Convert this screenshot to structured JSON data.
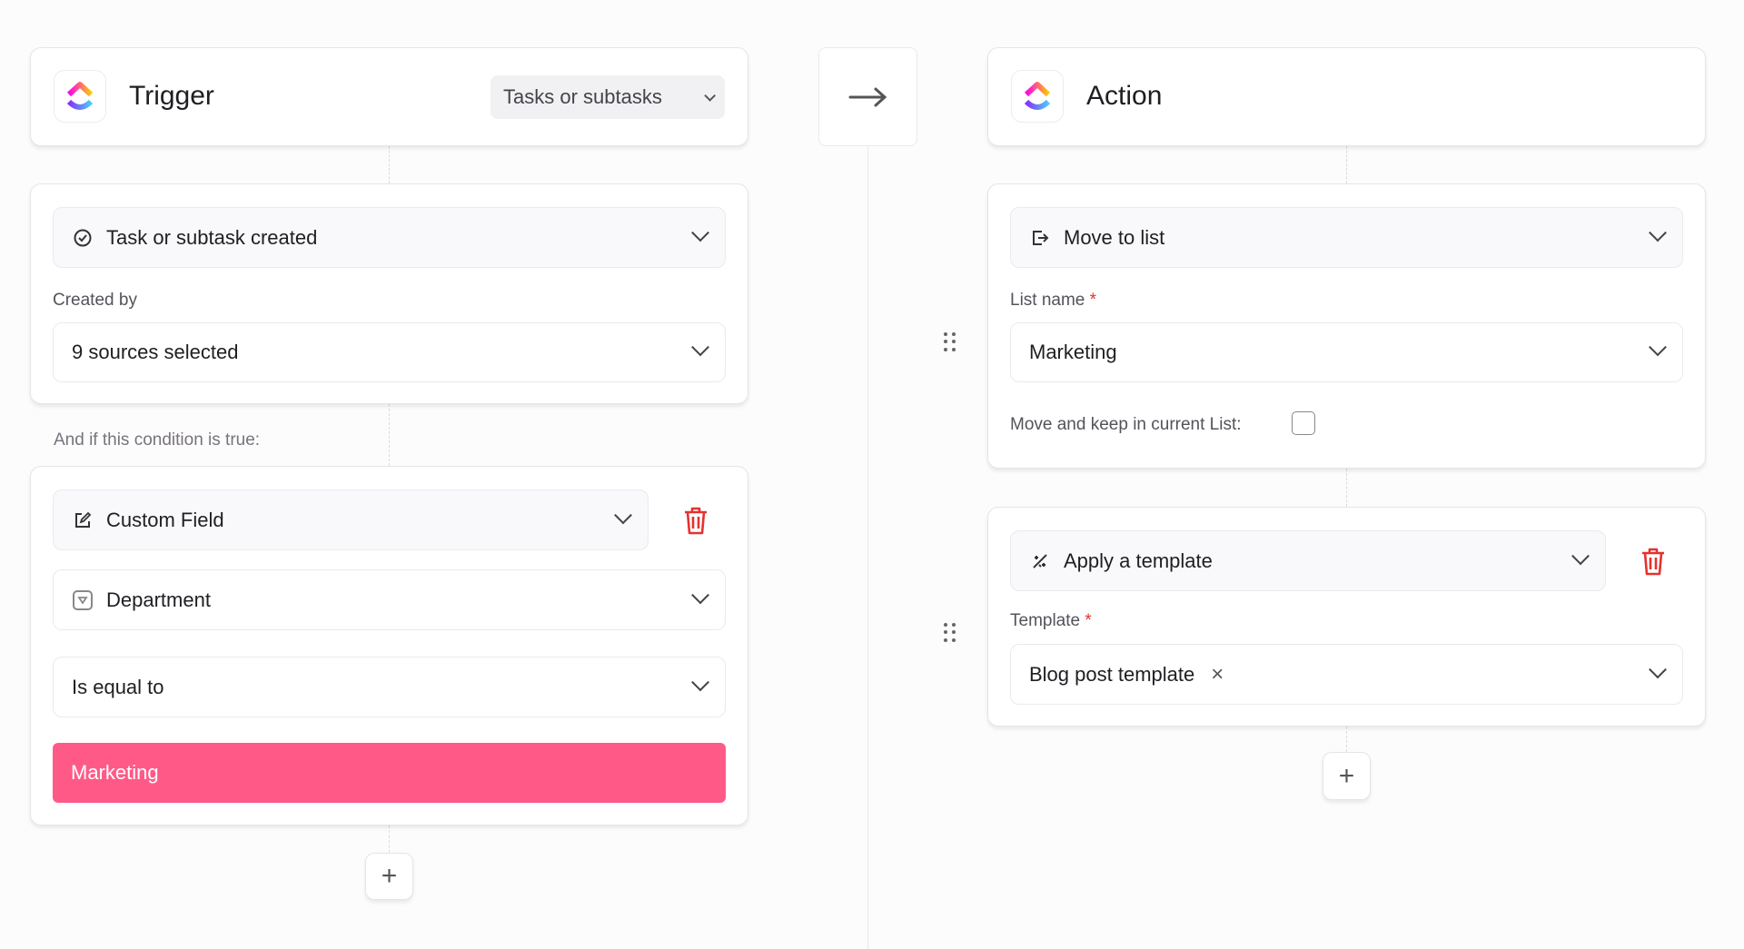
{
  "trigger": {
    "title": "Trigger",
    "scope": "Tasks or subtasks",
    "event": "Task or subtask created",
    "created_by_label": "Created by",
    "created_by_value": "9 sources selected"
  },
  "condition": {
    "intro": "And if this condition is true:",
    "type": "Custom Field",
    "field": "Department",
    "operator": "Is equal to",
    "value": "Marketing",
    "value_color": "#ff5a87"
  },
  "action": {
    "title": "Action",
    "first": {
      "type": "Move to list",
      "list_label": "List name",
      "required": "*",
      "list_value": "Marketing",
      "keep_label": "Move and keep in current List:",
      "keep_checked": false
    },
    "second": {
      "type": "Apply a template",
      "template_label": "Template",
      "required": "*",
      "template_value": "Blog post template",
      "remove": "×"
    }
  },
  "add": "+",
  "colors": {
    "danger": "#e5322f",
    "accent": "#ff5a87"
  }
}
